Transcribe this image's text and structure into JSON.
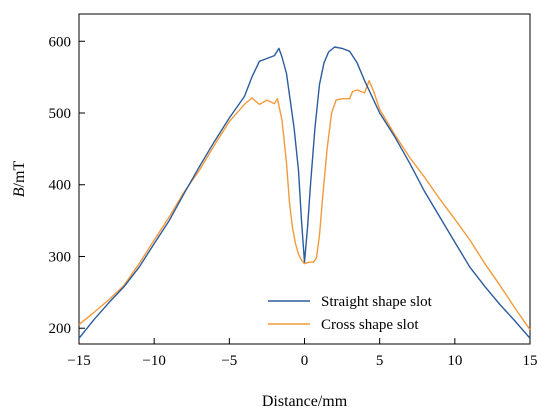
{
  "chart_data": {
    "type": "line",
    "xlabel": "Distance/mm",
    "ylabel_italic": "B",
    "ylabel_rest": "/mT",
    "xlim": [
      -15,
      15
    ],
    "ylim": [
      178,
      638
    ],
    "xticks": [
      -15,
      -10,
      -5,
      0,
      5,
      10,
      15
    ],
    "xtick_labels": [
      "−15",
      "−10",
      "−5",
      "0",
      "5",
      "10",
      "15"
    ],
    "yticks": [
      200,
      300,
      400,
      500,
      600
    ],
    "ytick_labels": [
      "200",
      "300",
      "400",
      "500",
      "600"
    ],
    "grid": false,
    "legend_position": "bottom-right",
    "series": [
      {
        "name": "Straight shape slot",
        "color": "#2b5c9e",
        "x": [
          -15,
          -14,
          -13,
          -12,
          -11,
          -10,
          -9,
          -8,
          -7,
          -6,
          -5,
          -4,
          -3.5,
          -3,
          -2.5,
          -2,
          -1.7,
          -1.5,
          -1.2,
          -1,
          -0.7,
          -0.4,
          -0.2,
          0,
          0.2,
          0.4,
          0.7,
          1,
          1.3,
          1.6,
          2,
          2.5,
          3,
          3.5,
          4,
          5,
          6,
          7,
          8,
          9,
          10,
          11,
          12,
          13,
          14,
          15
        ],
        "y": [
          186,
          212,
          236,
          258,
          285,
          318,
          350,
          388,
          425,
          460,
          493,
          523,
          550,
          572,
          576,
          580,
          590,
          578,
          555,
          525,
          480,
          420,
          350,
          292,
          340,
          400,
          480,
          540,
          570,
          585,
          592,
          590,
          586,
          570,
          545,
          500,
          467,
          430,
          390,
          355,
          320,
          285,
          258,
          233,
          210,
          186
        ]
      },
      {
        "name": "Cross shape slot",
        "color": "#f29a3c",
        "x": [
          -15,
          -14,
          -13,
          -12,
          -11,
          -10,
          -9,
          -8,
          -7,
          -6,
          -5,
          -4,
          -3.5,
          -3,
          -2.5,
          -2,
          -1.8,
          -1.5,
          -1.2,
          -1,
          -0.8,
          -0.6,
          -0.4,
          -0.2,
          0,
          0.3,
          0.6,
          0.8,
          1,
          1.2,
          1.5,
          1.8,
          2.1,
          2.5,
          3,
          3.2,
          3.5,
          4,
          4.3,
          4.6,
          5,
          6,
          7,
          8,
          9,
          10,
          11,
          12,
          13,
          14,
          15
        ],
        "y": [
          205,
          222,
          240,
          260,
          290,
          323,
          355,
          390,
          420,
          455,
          488,
          512,
          521,
          512,
          518,
          513,
          520,
          490,
          430,
          375,
          340,
          318,
          303,
          295,
          290,
          292,
          292,
          298,
          330,
          380,
          450,
          500,
          518,
          520,
          520,
          530,
          532,
          528,
          545,
          530,
          505,
          470,
          438,
          410,
          380,
          352,
          323,
          290,
          260,
          228,
          198
        ]
      }
    ]
  }
}
